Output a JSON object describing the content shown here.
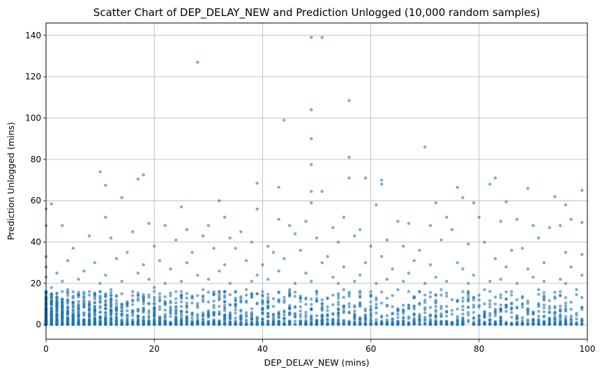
{
  "chart_data": {
    "type": "scatter",
    "title": "Scatter Chart of DEP_DELAY_NEW and Prediction Unlogged (10,000 random samples)",
    "xlabel": "DEP_DELAY_NEW (mins)",
    "ylabel": "Prediction Unlogged (mins)",
    "xlim": [
      0,
      100
    ],
    "ylim": [
      -7,
      146
    ],
    "xticks": [
      0,
      20,
      40,
      60,
      80,
      100
    ],
    "yticks": [
      0,
      20,
      40,
      60,
      80,
      100,
      120,
      140
    ],
    "grid": true,
    "legend": "none",
    "point_color": "#1f77b4",
    "point_alpha": 0.6,
    "series": [
      {
        "points": [
          [
            28,
            127
          ],
          [
            49,
            139
          ],
          [
            51,
            139
          ],
          [
            56,
            108.5
          ],
          [
            49,
            104
          ],
          [
            44,
            99
          ],
          [
            49,
            90
          ],
          [
            70,
            86
          ],
          [
            56,
            81
          ],
          [
            49,
            77.5
          ],
          [
            10,
            74
          ],
          [
            18,
            72.5
          ],
          [
            17,
            70.5
          ],
          [
            56,
            71
          ],
          [
            59,
            71
          ],
          [
            83,
            71
          ],
          [
            11,
            67.5
          ],
          [
            62,
            70
          ],
          [
            62,
            68
          ],
          [
            39,
            68.5
          ],
          [
            76,
            66.5
          ],
          [
            89,
            66
          ],
          [
            99,
            65
          ],
          [
            43,
            66.5
          ],
          [
            49,
            64.5
          ],
          [
            51,
            64.5
          ],
          [
            82,
            68
          ],
          [
            14,
            61.5
          ],
          [
            77,
            61.5
          ],
          [
            94,
            62
          ],
          [
            85,
            59.5
          ],
          [
            32,
            60
          ],
          [
            72,
            59
          ],
          [
            96,
            58
          ],
          [
            1,
            58.5
          ],
          [
            61,
            58
          ],
          [
            25,
            57
          ],
          [
            79,
            59
          ],
          [
            39,
            56
          ],
          [
            49,
            59
          ],
          [
            11,
            52
          ],
          [
            33,
            52
          ],
          [
            43,
            51
          ],
          [
            55,
            52
          ],
          [
            65,
            50
          ],
          [
            74,
            52
          ],
          [
            80,
            52
          ],
          [
            87,
            51
          ],
          [
            93,
            47
          ],
          [
            99,
            49.5
          ],
          [
            97,
            51
          ],
          [
            3,
            48
          ],
          [
            19,
            49
          ],
          [
            22,
            48
          ],
          [
            26,
            46
          ],
          [
            30,
            48
          ],
          [
            36,
            45
          ],
          [
            45,
            48
          ],
          [
            48,
            50
          ],
          [
            53,
            47
          ],
          [
            58,
            46
          ],
          [
            67,
            49
          ],
          [
            71,
            48
          ],
          [
            75,
            46
          ],
          [
            84,
            50
          ],
          [
            90,
            48
          ],
          [
            95,
            48
          ],
          [
            16,
            45
          ],
          [
            8,
            43
          ],
          [
            12,
            42
          ],
          [
            20,
            38
          ],
          [
            24,
            41
          ],
          [
            29,
            43
          ],
          [
            31,
            37
          ],
          [
            34,
            42
          ],
          [
            38,
            40
          ],
          [
            41,
            38
          ],
          [
            46,
            44
          ],
          [
            50,
            42
          ],
          [
            54,
            40
          ],
          [
            57,
            43
          ],
          [
            60,
            38
          ],
          [
            63,
            41
          ],
          [
            66,
            38
          ],
          [
            69,
            36
          ],
          [
            73,
            41
          ],
          [
            78,
            39
          ],
          [
            81,
            40
          ],
          [
            86,
            36
          ],
          [
            88,
            37
          ],
          [
            91,
            42
          ],
          [
            96,
            35
          ],
          [
            99,
            34
          ],
          [
            5,
            37
          ],
          [
            15,
            35
          ],
          [
            27,
            35
          ],
          [
            35,
            37
          ],
          [
            42,
            35
          ],
          [
            47,
            36
          ],
          [
            52,
            33
          ],
          [
            62,
            33
          ],
          [
            68,
            31
          ],
          [
            76,
            30
          ],
          [
            83,
            32
          ],
          [
            92,
            30
          ],
          [
            4,
            31
          ],
          [
            9,
            30
          ],
          [
            13,
            32
          ],
          [
            18,
            29
          ],
          [
            21,
            31
          ],
          [
            26,
            30
          ],
          [
            33,
            29
          ],
          [
            37,
            31
          ],
          [
            40,
            29
          ],
          [
            44,
            32
          ],
          [
            51,
            30
          ],
          [
            55,
            28
          ],
          [
            59,
            30
          ],
          [
            64,
            27
          ],
          [
            71,
            29
          ],
          [
            77,
            27
          ],
          [
            85,
            28
          ],
          [
            89,
            27
          ],
          [
            97,
            28
          ],
          [
            2,
            25
          ],
          [
            7,
            26
          ],
          [
            11,
            24
          ],
          [
            17,
            25
          ],
          [
            23,
            27
          ],
          [
            28,
            24
          ],
          [
            32,
            26
          ],
          [
            39,
            24
          ],
          [
            43,
            26
          ],
          [
            48,
            25
          ],
          [
            53,
            23
          ],
          [
            58,
            24
          ],
          [
            63,
            22
          ],
          [
            67,
            25
          ],
          [
            72,
            23
          ],
          [
            79,
            24
          ],
          [
            84,
            22
          ],
          [
            90,
            23
          ],
          [
            95,
            22
          ],
          [
            99,
            24
          ],
          [
            3,
            21
          ],
          [
            6,
            22
          ],
          [
            10,
            20
          ],
          [
            14,
            21
          ],
          [
            19,
            22
          ],
          [
            22,
            20
          ],
          [
            25,
            21
          ],
          [
            30,
            22
          ],
          [
            34,
            20
          ],
          [
            38,
            21
          ],
          [
            41,
            22
          ],
          [
            46,
            20
          ],
          [
            49,
            21
          ],
          [
            54,
            20
          ],
          [
            57,
            21
          ],
          [
            61,
            20
          ],
          [
            66,
            21
          ],
          [
            70,
            20
          ],
          [
            74,
            21
          ],
          [
            78,
            20
          ],
          [
            82,
            21
          ],
          [
            87,
            20
          ],
          [
            92,
            21
          ],
          [
            96,
            20
          ],
          [
            1,
            18
          ],
          [
            4,
            17
          ],
          [
            8,
            16
          ],
          [
            12,
            17
          ],
          [
            16,
            16
          ],
          [
            20,
            18
          ],
          [
            24,
            16
          ],
          [
            29,
            17
          ],
          [
            33,
            16
          ],
          [
            37,
            17
          ],
          [
            40,
            16
          ],
          [
            45,
            17
          ],
          [
            50,
            16
          ],
          [
            55,
            17
          ],
          [
            60,
            16
          ],
          [
            65,
            17
          ],
          [
            69,
            16
          ],
          [
            73,
            17
          ],
          [
            77,
            16
          ],
          [
            81,
            17
          ],
          [
            86,
            16
          ],
          [
            91,
            17
          ],
          [
            95,
            16
          ],
          [
            98,
            17
          ],
          [
            0,
            16
          ],
          [
            0,
            13
          ],
          [
            0,
            10
          ],
          [
            0,
            7
          ],
          [
            0,
            4
          ],
          [
            0,
            1
          ],
          [
            0,
            23
          ],
          [
            0,
            28
          ],
          [
            0,
            33
          ],
          [
            0,
            48
          ],
          [
            0,
            56
          ]
        ]
      }
    ]
  }
}
